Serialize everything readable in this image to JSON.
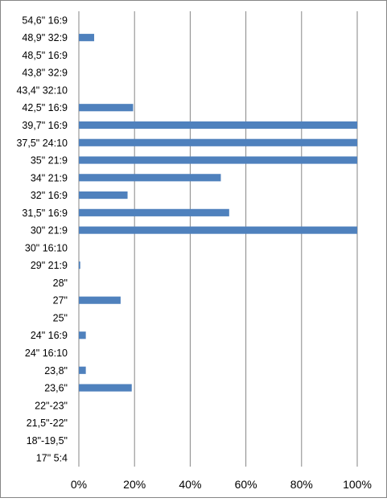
{
  "colors": {
    "bar": "#4f81bd",
    "grid": "#868686",
    "border": "#868686",
    "background": "#ffffff"
  },
  "chart_data": {
    "type": "bar",
    "orientation": "horizontal",
    "categories": [
      "54,6\" 16:9",
      "48,9\" 32:9",
      "48,5\" 16:9",
      "43,8\" 32:9",
      "43,4\" 32:10",
      "42,5\" 16:9",
      "39,7\" 16:9",
      "37,5\" 24:10",
      "35\" 21:9",
      "34\" 21:9",
      "32\" 16:9",
      "31,5\" 16:9",
      "30\" 21:9",
      "30\" 16:10",
      "29\" 21:9",
      "28\"",
      "27\"",
      "25\"",
      "24\" 16:9",
      "24\" 16:10",
      "23,8\"",
      "23,6\"",
      "22\"-23\"",
      "21,5\"-22\"",
      "18\"-19,5\"",
      "17\" 5:4"
    ],
    "values": [
      0,
      5.5,
      0,
      0,
      0,
      19.5,
      100,
      100,
      100,
      51,
      17.5,
      54,
      100,
      0,
      0.5,
      0,
      15,
      0,
      2.5,
      0,
      2.5,
      19,
      0,
      0,
      0,
      0
    ],
    "xlim": [
      0,
      100
    ],
    "xticks": [
      "0%",
      "20%",
      "40%",
      "60%",
      "80%",
      "100%"
    ],
    "grid": true,
    "legend": "none",
    "title": "",
    "xlabel": "",
    "ylabel": ""
  }
}
